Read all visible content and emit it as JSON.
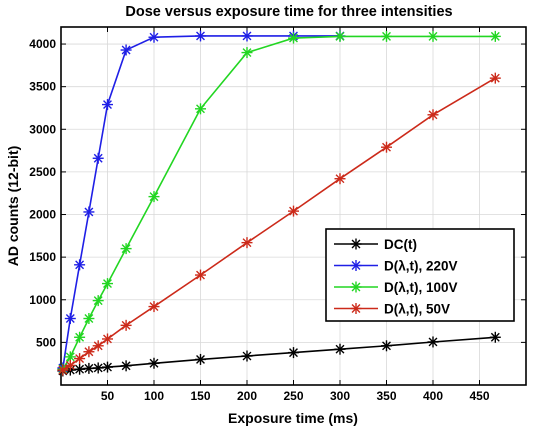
{
  "chart_data": {
    "type": "line",
    "title": "Dose versus exposure time for three intensities",
    "xlabel": "Exposure time (ms)",
    "ylabel": "AD counts (12-bit)",
    "xlim": [
      0,
      500
    ],
    "ylim": [
      0,
      4200
    ],
    "xticks": [
      50,
      100,
      150,
      200,
      250,
      300,
      350,
      400,
      450
    ],
    "xtick_labels": [
      "50",
      "100",
      "150",
      "200",
      "250",
      "300",
      "350",
      "400",
      "450"
    ],
    "yticks": [
      500,
      1000,
      1500,
      2000,
      2500,
      3000,
      3500,
      4000
    ],
    "ytick_labels": [
      "500",
      "1000",
      "1500",
      "2000",
      "2500",
      "3000",
      "3500",
      "4000"
    ],
    "grid": true,
    "legend": "center-right",
    "marker": "asterisk",
    "series": [
      {
        "name": "DC(t)",
        "color": "#000000",
        "x": [
          2,
          10,
          20,
          30,
          40,
          50,
          70,
          100,
          150,
          200,
          250,
          300,
          350,
          400,
          467
        ],
        "y": [
          165,
          175,
          185,
          195,
          200,
          210,
          225,
          255,
          300,
          340,
          380,
          420,
          460,
          505,
          560
        ]
      },
      {
        "name": "D(λ,t), 220V",
        "color": "#1f1fe6",
        "x": [
          2,
          10,
          20,
          30,
          40,
          50,
          70,
          100,
          150,
          200,
          250,
          300
        ],
        "y": [
          200,
          780,
          1410,
          2030,
          2660,
          3290,
          3930,
          4080,
          4095,
          4095,
          4095,
          4095
        ]
      },
      {
        "name": "D(λ,t), 100V",
        "color": "#22d622",
        "x": [
          2,
          10,
          20,
          30,
          40,
          50,
          70,
          100,
          150,
          200,
          250,
          300,
          350,
          400,
          467
        ],
        "y": [
          185,
          330,
          560,
          780,
          990,
          1190,
          1600,
          2210,
          3240,
          3900,
          4070,
          4090,
          4090,
          4090,
          4090
        ]
      },
      {
        "name": "D(λ,t), 50V",
        "color": "#cc2a1a",
        "x": [
          2,
          10,
          20,
          30,
          40,
          50,
          70,
          100,
          150,
          200,
          250,
          300,
          350,
          400,
          467
        ],
        "y": [
          175,
          230,
          310,
          390,
          460,
          540,
          700,
          920,
          1290,
          1670,
          2040,
          2420,
          2790,
          3170,
          3600
        ]
      }
    ]
  }
}
